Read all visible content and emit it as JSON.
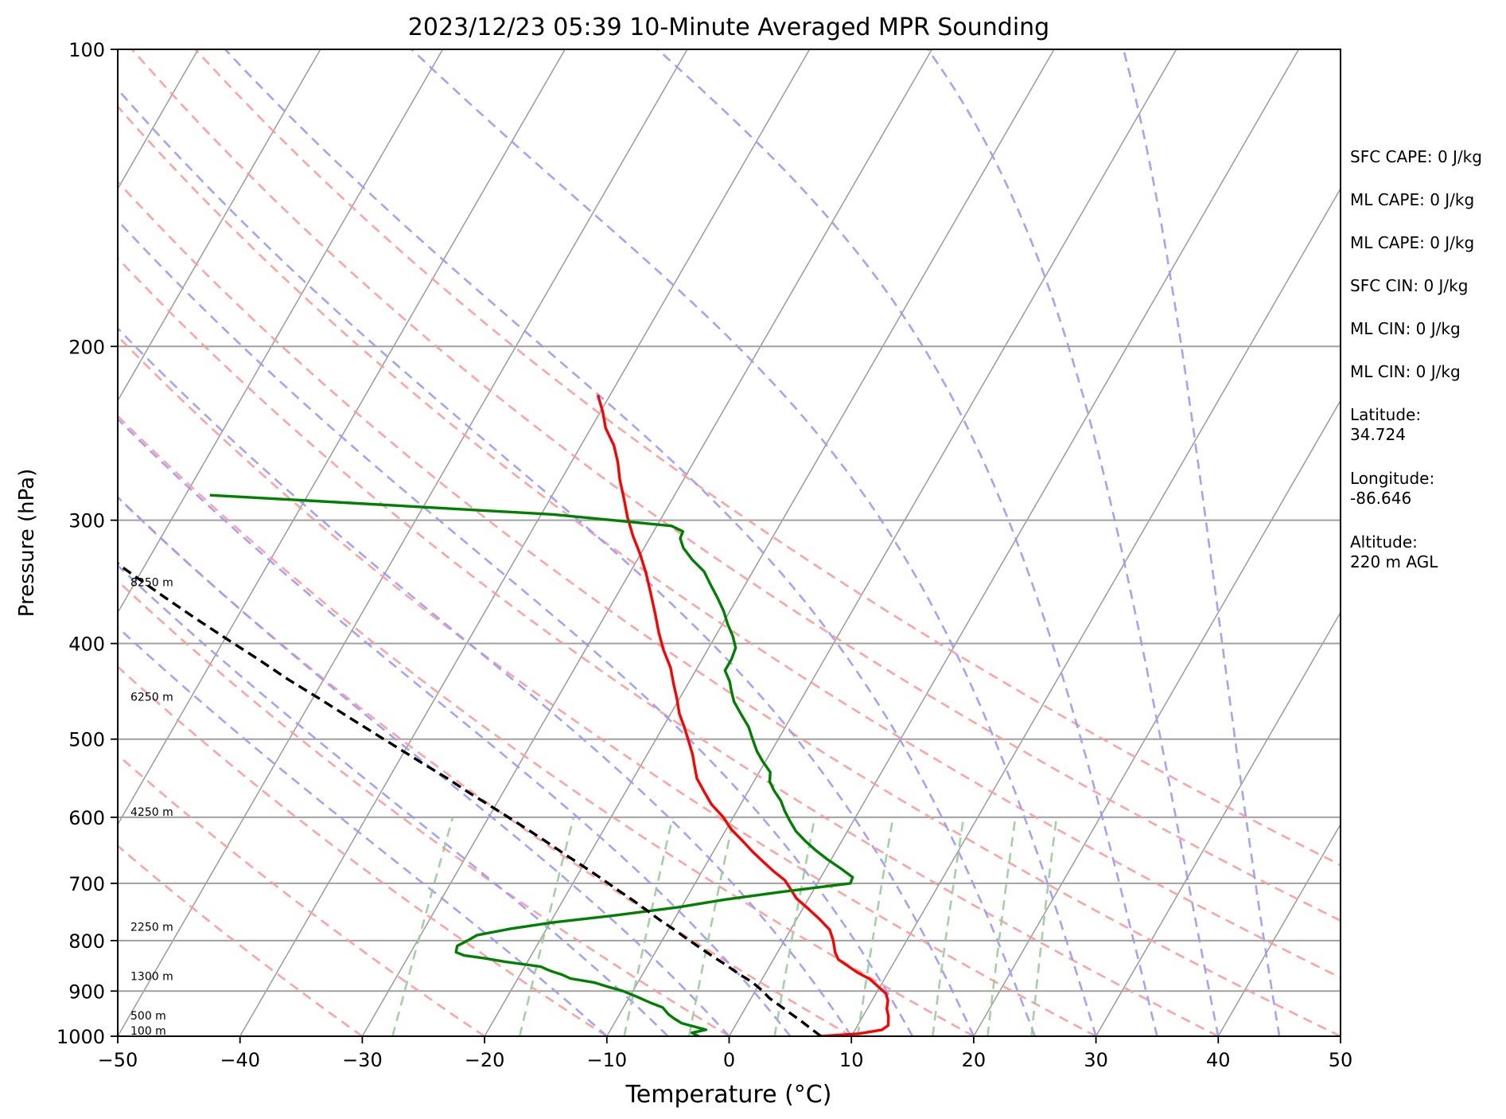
{
  "chart_data": {
    "type": "line",
    "subtype": "skew-t log-p sounding",
    "title": "2023/12/23 05:39 10-Minute Averaged MPR Sounding",
    "xlabel": "Temperature (°C)",
    "ylabel": "Pressure (hPa)",
    "xlim": [
      -50,
      50
    ],
    "ylim": [
      1000,
      100
    ],
    "y_scale": "log",
    "x_ticks": [
      -50,
      -40,
      -30,
      -20,
      -10,
      0,
      10,
      20,
      30,
      40,
      50
    ],
    "x_tick_labels": [
      "−50",
      "−40",
      "−30",
      "−20",
      "−10",
      "0",
      "10",
      "20",
      "30",
      "40",
      "50"
    ],
    "y_ticks": [
      100,
      200,
      300,
      400,
      500,
      600,
      700,
      800,
      900,
      1000
    ],
    "y_tick_labels": [
      "100",
      "200",
      "300",
      "400",
      "500",
      "600",
      "700",
      "800",
      "900",
      "1000"
    ],
    "grid": true,
    "colors": {
      "temperature": "#ff0000",
      "dewpoint": "#008000",
      "parcel": "#000000",
      "isotherm": "#a0a0a0",
      "dry_adiabat": "#ff9999",
      "moist_adiabat": "#9999ff",
      "mixing_ratio": "#99cc99",
      "isobar": "#a0a0a0"
    },
    "reference_lines": {
      "isotherms_at_1000hPa": [
        -140,
        -130,
        -120,
        -110,
        -100,
        -90,
        -80,
        -70,
        -60,
        -50,
        -40,
        -30,
        -20,
        -10,
        0,
        10,
        20,
        30,
        40,
        50
      ],
      "dry_adiabats_theta_C": [
        -30,
        -20,
        -10,
        0,
        10,
        20,
        30,
        40,
        50,
        60,
        70,
        80
      ],
      "moist_adiabats_start_C": [
        -10,
        -5,
        0,
        5,
        10,
        15,
        20,
        25,
        30,
        35,
        40,
        45
      ],
      "mixing_ratio_lines_gkg": [
        0.4,
        1,
        2,
        3,
        5,
        8,
        12,
        16,
        20
      ]
    },
    "series": [
      {
        "key": "temperature",
        "points": [
          [
            7.5,
            1000
          ],
          [
            10.5,
            994
          ],
          [
            12.2,
            985
          ],
          [
            12.5,
            975
          ],
          [
            12.1,
            955
          ],
          [
            11.6,
            938
          ],
          [
            11.3,
            920
          ],
          [
            10.8,
            905
          ],
          [
            9.8,
            890
          ],
          [
            8.8,
            875
          ],
          [
            7.5,
            862
          ],
          [
            6.5,
            850
          ],
          [
            5.3,
            836
          ],
          [
            4.7,
            822
          ],
          [
            4.0,
            800
          ],
          [
            3.2,
            780
          ],
          [
            1.8,
            760
          ],
          [
            0.4,
            742
          ],
          [
            -1.0,
            725
          ],
          [
            -2.0,
            708
          ],
          [
            -2.8,
            695
          ],
          [
            -4.2,
            680
          ],
          [
            -5.5,
            665
          ],
          [
            -6.8,
            650
          ],
          [
            -8.2,
            633
          ],
          [
            -9.6,
            617
          ],
          [
            -10.8,
            600
          ],
          [
            -12.4,
            582
          ],
          [
            -13.6,
            565
          ],
          [
            -14.8,
            548
          ],
          [
            -15.6,
            532
          ],
          [
            -16.3,
            518
          ],
          [
            -17.2,
            503
          ],
          [
            -18.2,
            487
          ],
          [
            -19.3,
            471
          ],
          [
            -20.2,
            455
          ],
          [
            -21.2,
            439
          ],
          [
            -22.2,
            423
          ],
          [
            -23.6,
            406
          ],
          [
            -24.8,
            390
          ],
          [
            -26.0,
            373
          ],
          [
            -27.3,
            356
          ],
          [
            -28.6,
            340
          ],
          [
            -30.0,
            325
          ],
          [
            -31.5,
            311
          ],
          [
            -32.8,
            298
          ],
          [
            -34.0,
            285
          ],
          [
            -35.2,
            273
          ],
          [
            -36.2,
            262
          ],
          [
            -37.3,
            252
          ],
          [
            -38.8,
            242
          ],
          [
            -39.8,
            233
          ],
          [
            -41.0,
            224
          ]
        ]
      },
      {
        "key": "dewpoint",
        "points": [
          [
            -2.5,
            1000
          ],
          [
            -3.2,
            992
          ],
          [
            -2.2,
            985
          ],
          [
            -4.5,
            970
          ],
          [
            -5.3,
            960
          ],
          [
            -6.0,
            950
          ],
          [
            -6.8,
            935
          ],
          [
            -8.0,
            925
          ],
          [
            -9.4,
            912
          ],
          [
            -10.8,
            900
          ],
          [
            -12.4,
            890
          ],
          [
            -13.6,
            882
          ],
          [
            -15.7,
            874
          ],
          [
            -16.6,
            866
          ],
          [
            -17.5,
            860
          ],
          [
            -17.9,
            857
          ],
          [
            -18.7,
            850
          ],
          [
            -22.0,
            840
          ],
          [
            -23.6,
            834
          ],
          [
            -25.5,
            828
          ],
          [
            -26.3,
            822
          ],
          [
            -26.5,
            810
          ],
          [
            -25.9,
            800
          ],
          [
            -25.4,
            790
          ],
          [
            -22.9,
            778
          ],
          [
            -19.8,
            767
          ],
          [
            -15.3,
            755
          ],
          [
            -10.2,
            740
          ],
          [
            -6.8,
            727
          ],
          [
            -2.5,
            714
          ],
          [
            2.7,
            700
          ],
          [
            2.6,
            690
          ],
          [
            1.2,
            676
          ],
          [
            -0.3,
            662
          ],
          [
            -1.7,
            648
          ],
          [
            -3.0,
            634
          ],
          [
            -4.2,
            620
          ],
          [
            -5.2,
            605
          ],
          [
            -6.1,
            591
          ],
          [
            -6.9,
            577
          ],
          [
            -7.9,
            564
          ],
          [
            -8.7,
            552
          ],
          [
            -9.1,
            540
          ],
          [
            -10.2,
            527
          ],
          [
            -11.2,
            514
          ],
          [
            -12.1,
            500
          ],
          [
            -13.0,
            486
          ],
          [
            -14.2,
            472
          ],
          [
            -15.4,
            458
          ],
          [
            -16.1,
            447
          ],
          [
            -16.7,
            437
          ],
          [
            -17.6,
            426
          ],
          [
            -17.6,
            415
          ],
          [
            -17.8,
            404
          ],
          [
            -18.6,
            393
          ],
          [
            -19.6,
            382
          ],
          [
            -20.5,
            371
          ],
          [
            -21.6,
            360
          ],
          [
            -22.8,
            349
          ],
          [
            -24.0,
            338
          ],
          [
            -25.5,
            329
          ],
          [
            -26.8,
            320
          ],
          [
            -27.5,
            313
          ],
          [
            -27.6,
            308
          ],
          [
            -28.8,
            304
          ],
          [
            -39.0,
            296
          ],
          [
            -61.0,
            286
          ],
          [
            -68.0,
            283
          ]
        ]
      },
      {
        "key": "parcel",
        "points": [
          [
            7.5,
            1000
          ],
          [
            5.5,
            970
          ],
          [
            3.5,
            942
          ],
          [
            1.5,
            915
          ],
          [
            0.5,
            898
          ],
          [
            -0.7,
            881
          ],
          [
            -2.2,
            864
          ],
          [
            -3.6,
            847
          ],
          [
            -5.1,
            830
          ],
          [
            -6.6,
            813
          ],
          [
            -8.1,
            796
          ],
          [
            -9.6,
            779
          ],
          [
            -11.2,
            762
          ],
          [
            -12.8,
            744
          ],
          [
            -14.4,
            727
          ],
          [
            -16.1,
            710
          ],
          [
            -17.9,
            692
          ],
          [
            -19.7,
            675
          ],
          [
            -21.7,
            657
          ],
          [
            -23.7,
            639
          ],
          [
            -25.8,
            621
          ],
          [
            -28.0,
            603
          ],
          [
            -30.3,
            585
          ],
          [
            -32.7,
            567
          ],
          [
            -35.2,
            548
          ],
          [
            -37.8,
            530
          ],
          [
            -40.6,
            511
          ],
          [
            -43.5,
            492
          ],
          [
            -46.5,
            473
          ],
          [
            -49.6,
            454
          ],
          [
            -52.9,
            435
          ],
          [
            -56.3,
            415
          ],
          [
            -59.8,
            396
          ],
          [
            -63.4,
            377
          ],
          [
            -67.1,
            358
          ],
          [
            -70.9,
            339
          ],
          [
            -74.8,
            320
          ],
          [
            -78.8,
            301
          ],
          [
            -82.9,
            283
          ],
          [
            -87.0,
            265
          ]
        ]
      }
    ],
    "height_labels": [
      {
        "text": "8250 m",
        "p": 350
      },
      {
        "text": "6250 m",
        "p": 457
      },
      {
        "text": "4250 m",
        "p": 598
      },
      {
        "text": "2250 m",
        "p": 782
      },
      {
        "text": "1300 m",
        "p": 877
      },
      {
        "text": "500 m",
        "p": 962
      },
      {
        "text": "100 m",
        "p": 996
      }
    ],
    "annotations": [
      "SFC CAPE: 0 J/kg",
      "ML CAPE: 0 J/kg",
      "ML CAPE: 0 J/kg",
      "SFC CIN: 0 J/kg",
      "ML CIN: 0 J/kg",
      "ML CIN: 0 J/kg",
      "Latitude:\n34.724",
      "Longitude:\n-86.646",
      "Altitude:\n220 m AGL"
    ]
  }
}
